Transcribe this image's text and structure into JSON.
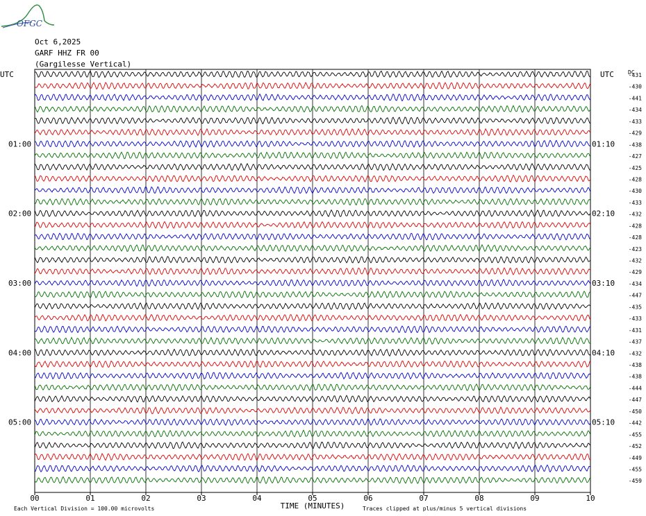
{
  "header": {
    "logo_text": "OFGC",
    "date": "Oct 6,2025",
    "station": "GARF HHZ FR 00",
    "location": "(Gargilesse Vertical)"
  },
  "chart_data": {
    "type": "line",
    "title": "",
    "left_axis_label": "UTC",
    "right_axis_label": "UTC",
    "dc_label": "DC",
    "left_time_labels": [
      "01:00",
      "02:00",
      "03:00",
      "04:00",
      "05:00"
    ],
    "left_time_label_rows": [
      6,
      12,
      18,
      24,
      30
    ],
    "right_time_labels": [
      "01:10",
      "02:10",
      "03:10",
      "04:10",
      "05:10"
    ],
    "right_time_label_rows": [
      6,
      12,
      18,
      24,
      30
    ],
    "x_ticks": [
      "00",
      "01",
      "02",
      "03",
      "04",
      "05",
      "06",
      "07",
      "08",
      "09",
      "10"
    ],
    "xlim": [
      0,
      10
    ],
    "xlabel": "TIME (MINUTES)",
    "trace_colors": [
      "#000000",
      "#e00000",
      "#0000d0",
      "#007000"
    ],
    "dc_offsets": [
      -431,
      -430,
      -441,
      -434,
      -433,
      -429,
      -438,
      -427,
      -425,
      -428,
      -430,
      -433,
      -432,
      -428,
      -428,
      -423,
      -432,
      -429,
      -434,
      -447,
      -435,
      -433,
      -431,
      -437,
      -432,
      -438,
      -438,
      -444,
      -447,
      -450,
      -442,
      -455,
      -452,
      -449,
      -455,
      -459
    ],
    "footer_left": "Each Vertical Division =  100.00 microvolts",
    "footer_right": "Traces clipped at plus/minus 5 vertical divisions"
  }
}
